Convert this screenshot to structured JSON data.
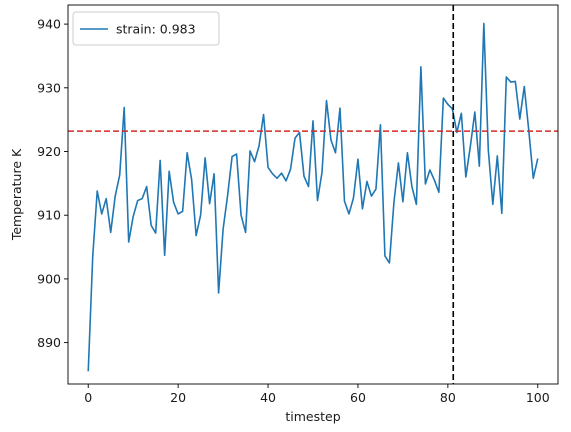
{
  "chart_data": {
    "type": "line",
    "title": "",
    "xlabel": "timestep",
    "ylabel": "Temperature K",
    "xlim": [
      -4.5,
      104.5
    ],
    "ylim": [
      883.5,
      943.0
    ],
    "xticks": [
      0,
      20,
      40,
      60,
      80,
      100
    ],
    "yticks": [
      890,
      900,
      910,
      920,
      930,
      940
    ],
    "grid": false,
    "legend_position": "upper-left",
    "series": [
      {
        "name": "strain: 0.983",
        "color": "#1f77b4",
        "x": [
          0,
          1,
          2,
          3,
          4,
          5,
          6,
          7,
          8,
          9,
          10,
          11,
          12,
          13,
          14,
          15,
          16,
          17,
          18,
          19,
          20,
          21,
          22,
          23,
          24,
          25,
          26,
          27,
          28,
          29,
          30,
          31,
          32,
          33,
          34,
          35,
          36,
          37,
          38,
          39,
          40,
          41,
          42,
          43,
          44,
          45,
          46,
          47,
          48,
          49,
          50,
          51,
          52,
          53,
          54,
          55,
          56,
          57,
          58,
          59,
          60,
          61,
          62,
          63,
          64,
          65,
          66,
          67,
          68,
          69,
          70,
          71,
          72,
          73,
          74,
          75,
          76,
          77,
          78,
          79,
          80,
          81,
          82,
          83,
          84,
          85,
          86,
          87,
          88,
          89,
          90,
          91,
          92,
          93,
          94,
          95,
          96,
          97,
          98,
          99,
          100
        ],
        "y": [
          885.5,
          903.5,
          913.8,
          910.2,
          912.6,
          907.3,
          913.0,
          916.3,
          926.9,
          905.8,
          909.8,
          912.3,
          912.6,
          914.5,
          908.4,
          907.2,
          918.6,
          903.7,
          916.9,
          912.0,
          910.2,
          910.6,
          919.8,
          915.6,
          906.8,
          910.0,
          919.0,
          911.8,
          916.5,
          897.8,
          907.8,
          913.1,
          919.2,
          919.6,
          910.0,
          907.3,
          920.1,
          918.4,
          920.9,
          925.8,
          917.5,
          916.5,
          915.8,
          916.6,
          915.4,
          917.2,
          922.1,
          923.0,
          916.1,
          914.5,
          924.8,
          912.3,
          916.7,
          928.0,
          921.8,
          919.8,
          926.8,
          912.2,
          910.2,
          912.7,
          918.8,
          911.0,
          915.3,
          913.0,
          914.1,
          924.2,
          903.6,
          902.5,
          912.0,
          918.2,
          912.1,
          919.8,
          914.5,
          911.7,
          933.3,
          914.9,
          917.1,
          915.5,
          913.6,
          928.4,
          927.4,
          926.7,
          923.0,
          926.0,
          916.0,
          920.8,
          926.2,
          917.7,
          940.1,
          920.2,
          911.7,
          919.3,
          910.3,
          931.7,
          930.9,
          931.0,
          925.1,
          930.2,
          923.3,
          915.8,
          918.9
        ]
      }
    ],
    "reference_lines": [
      {
        "orientation": "horizontal",
        "value": 923.2,
        "color": "#d62728",
        "style": "dashed"
      },
      {
        "orientation": "vertical",
        "value": 81.2,
        "color": "#000000",
        "style": "dashed"
      }
    ]
  }
}
